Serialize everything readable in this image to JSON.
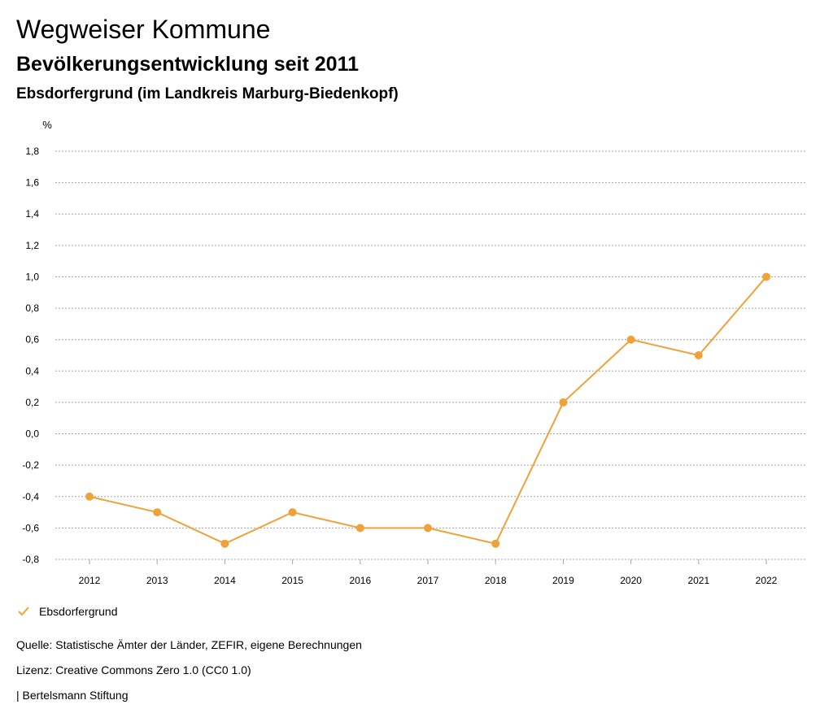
{
  "header": {
    "title": "Wegweiser Kommune",
    "subtitle": "Bevölkerungsentwicklung seit 2011",
    "region": "Ebsdorfergrund (im Landkreis Marburg-Biedenkopf)"
  },
  "chart_data": {
    "type": "line",
    "ylabel": "%",
    "x": [
      "2012",
      "2013",
      "2014",
      "2015",
      "2016",
      "2017",
      "2018",
      "2019",
      "2020",
      "2021",
      "2022"
    ],
    "series": [
      {
        "name": "Ebsdorfergrund",
        "color": "#f0a23a",
        "values": [
          -0.4,
          -0.5,
          -0.7,
          -0.5,
          -0.6,
          -0.6,
          -0.7,
          0.2,
          0.6,
          0.5,
          1.0
        ]
      }
    ],
    "ylim": [
      -0.8,
      1.8
    ],
    "yticks": [
      1.8,
      1.6,
      1.4,
      1.2,
      1.0,
      0.8,
      0.6,
      0.4,
      0.2,
      0.0,
      -0.2,
      -0.4,
      -0.6,
      -0.8
    ],
    "ytick_labels": [
      "1,8",
      "1,6",
      "1,4",
      "1,2",
      "1,0",
      "0,8",
      "0,6",
      "0,4",
      "0,2",
      "0,0",
      "-0,2",
      "-0,4",
      "-0,6",
      "-0,8"
    ],
    "grid": true,
    "legend": "bottom-left"
  },
  "legend": {
    "label": "Ebsdorfergrund"
  },
  "footer": {
    "source": "Quelle: Statistische Ämter der Länder, ZEFIR, eigene Berechnungen",
    "license": "Lizenz: Creative Commons Zero 1.0 (CC0 1.0)",
    "credit": "| Bertelsmann Stiftung"
  }
}
